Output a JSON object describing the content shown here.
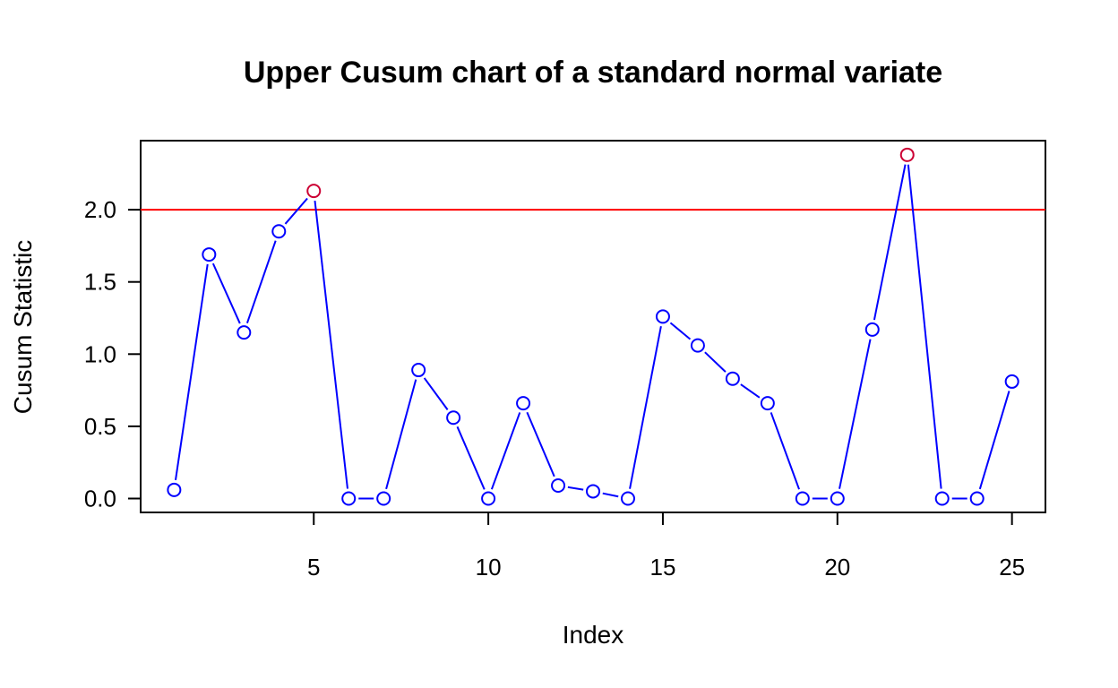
{
  "chart_data": {
    "type": "line",
    "title": "Upper Cusum chart of a standard normal variate",
    "xlabel": "Index",
    "ylabel": "Cusum Statistic",
    "x_ticks": [
      5,
      10,
      15,
      20,
      25
    ],
    "y_ticks": [
      "0.0",
      "0.5",
      "1.0",
      "1.5",
      "2.0"
    ],
    "xlim": [
      0,
      26
    ],
    "ylim": [
      -0.1,
      2.5
    ],
    "threshold": 2.0,
    "x": [
      1,
      2,
      3,
      4,
      5,
      6,
      7,
      8,
      9,
      10,
      11,
      12,
      13,
      14,
      15,
      16,
      17,
      18,
      19,
      20,
      21,
      22,
      23,
      24,
      25
    ],
    "values": [
      0.06,
      1.69,
      1.15,
      1.85,
      2.13,
      0.0,
      0.0,
      0.89,
      0.56,
      0.0,
      0.66,
      0.09,
      0.05,
      0.0,
      1.26,
      1.06,
      0.83,
      0.66,
      0.0,
      0.0,
      1.17,
      2.38,
      0.0,
      0.0,
      0.81
    ],
    "colors": {
      "line": "#0000ff",
      "point": "#0000ff",
      "alarm_point": "#cc0033",
      "threshold": "#ff0000",
      "axis": "#000000"
    },
    "grid": false
  }
}
